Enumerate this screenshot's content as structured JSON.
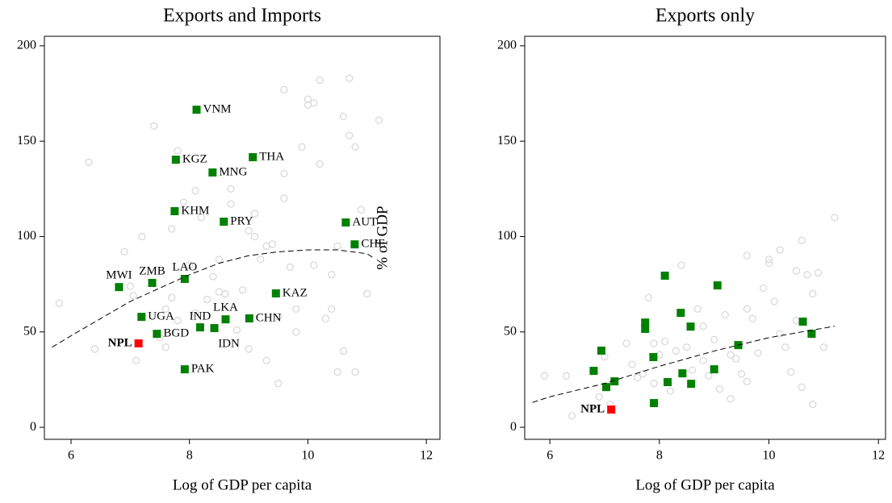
{
  "chart_data": [
    {
      "type": "scatter",
      "title": "Exports and Imports",
      "x_label": "Log of GDP per capita",
      "y_label": "% of GDP",
      "xlim": [
        5.55,
        12.23
      ],
      "ylim": [
        -6.3,
        205
      ],
      "xticks": [
        6,
        8,
        10,
        12
      ],
      "yticks": [
        0,
        50,
        100,
        150,
        200
      ],
      "series": [
        {
          "marker": "hollow-circle",
          "color": "#d9d9d9",
          "x": [
            6.3,
            5.8,
            6.4,
            6.9,
            7.0,
            7.05,
            7.2,
            7.4,
            7.6,
            7.7,
            7.8,
            7.7,
            7.8,
            7.9,
            8.1,
            8.1,
            8.2,
            8.3,
            8.4,
            8.5,
            8.6,
            8.7,
            8.7,
            8.8,
            8.9,
            9.0,
            9.1,
            9.1,
            9.2,
            9.3,
            9.4,
            9.5,
            9.5,
            9.6,
            9.6,
            9.6,
            9.7,
            9.8,
            9.9,
            10.0,
            10.0,
            10.1,
            10.2,
            10.2,
            10.3,
            10.4,
            10.5,
            10.5,
            10.6,
            10.7,
            10.7,
            10.8,
            10.9,
            11.0,
            11.2,
            10.6,
            10.8,
            9.0,
            9.3,
            9.8,
            10.1,
            7.1,
            7.5,
            7.6,
            8.0,
            8.5,
            10.4
          ],
          "values": [
            139,
            65,
            41,
            92,
            74,
            69,
            100,
            158,
            62,
            68,
            145,
            104,
            56,
            118,
            124,
            60,
            110,
            67,
            79,
            71,
            70,
            125,
            117,
            51,
            72,
            103,
            112,
            100,
            88,
            35,
            96,
            58,
            23,
            177,
            120,
            133,
            84,
            62,
            147,
            172,
            169,
            170,
            182,
            138,
            57,
            80,
            95,
            29,
            163,
            183,
            153,
            147,
            114,
            70,
            161,
            40,
            29,
            41,
            95,
            50,
            85,
            35,
            47,
            42,
            85,
            88,
            62
          ]
        },
        {
          "marker": "square",
          "color": "#008000",
          "x": [
            8.12,
            7.77,
            9.07,
            8.39,
            7.75,
            8.58,
            10.64,
            10.79,
            6.81,
            7.37,
            7.92,
            9.46,
            7.19,
            8.18,
            8.61,
            9.01,
            8.42,
            7.45,
            7.92
          ],
          "values": [
            166.5,
            140.3,
            141.6,
            133.6,
            113.3,
            107.8,
            107.4,
            95.9,
            73.5,
            75.7,
            77.8,
            70.2,
            57.9,
            52.4,
            56.6,
            57.1,
            52.0,
            49.0,
            30.4
          ],
          "labels": [
            "VNM",
            "KGZ",
            "THA",
            "MNG",
            "KHM",
            "PRY",
            "AUT",
            "CHE",
            "MWI",
            "ZMB",
            "LAO",
            "KAZ",
            "UGA",
            "IND",
            "LKA",
            "CHN",
            "IDN",
            "BGD",
            "PAK"
          ]
        },
        {
          "marker": "square",
          "color": "#ff0000",
          "x": [
            7.14
          ],
          "values": [
            44.0
          ],
          "labels": [
            "NPL"
          ]
        },
        {
          "marker": "line",
          "color": "#000000",
          "style": "dashed",
          "x": [
            5.68,
            6.0,
            6.5,
            7.0,
            7.5,
            8.0,
            8.5,
            9.0,
            9.5,
            10.0,
            10.5,
            11.0,
            11.1
          ],
          "values": [
            42,
            48,
            57,
            66,
            73,
            80,
            86,
            90,
            92,
            93,
            93,
            91,
            89
          ]
        }
      ]
    },
    {
      "type": "scatter",
      "title": "Exports only",
      "x_label": "Log of GDP per capita",
      "xlim": [
        5.54,
        12.13
      ],
      "ylim": [
        -6.3,
        205
      ],
      "xticks": [
        6,
        8,
        10,
        12
      ],
      "yticks": [
        0,
        50,
        100,
        150,
        200
      ],
      "series": [
        {
          "marker": "hollow-circle",
          "color": "#d9d9d9",
          "x": [
            5.9,
            6.3,
            6.4,
            6.9,
            7.0,
            7.1,
            7.4,
            7.5,
            7.6,
            7.7,
            7.8,
            7.9,
            8.0,
            8.1,
            8.2,
            8.3,
            8.4,
            8.5,
            8.6,
            8.7,
            8.8,
            8.9,
            9.0,
            9.1,
            9.2,
            9.3,
            9.3,
            9.4,
            9.5,
            9.6,
            9.6,
            9.7,
            9.8,
            9.9,
            10.0,
            10.0,
            10.1,
            10.2,
            10.2,
            10.3,
            10.4,
            10.5,
            10.6,
            10.6,
            10.7,
            10.8,
            10.8,
            10.9,
            11.0,
            11.2,
            10.5,
            9.6,
            8.8,
            7.9
          ],
          "values": [
            27,
            27,
            6,
            16,
            37,
            12,
            44,
            33,
            26,
            28,
            68,
            44,
            38,
            45,
            19,
            40,
            85,
            42,
            30,
            62,
            53,
            27,
            46,
            20,
            59,
            15,
            38,
            36,
            28,
            90,
            62,
            57,
            39,
            73,
            88,
            86,
            66,
            93,
            49,
            42,
            29,
            82,
            98,
            21,
            80,
            70,
            12,
            81,
            42,
            110,
            56,
            24,
            35,
            23
          ]
        },
        {
          "marker": "square",
          "color": "#008000",
          "x": [
            8.1,
            9.06,
            6.8,
            7.18,
            6.94,
            7.03,
            7.74,
            7.74,
            7.89,
            7.9,
            8.15,
            8.39,
            8.42,
            8.57,
            8.58,
            9.0,
            9.44,
            10.62,
            10.78
          ],
          "values": [
            79.5,
            74.4,
            29.6,
            24.1,
            40.2,
            21.1,
            54.9,
            51.6,
            36.8,
            12.7,
            23.7,
            60.0,
            28.3,
            52.8,
            22.8,
            30.4,
            43.1,
            55.4,
            49.0
          ]
        },
        {
          "marker": "square",
          "color": "#ff0000",
          "x": [
            7.12
          ],
          "values": [
            9.3
          ],
          "labels": [
            "NPL"
          ]
        },
        {
          "marker": "line",
          "color": "#000000",
          "style": "dashed",
          "x": [
            5.68,
            6.0,
            7.0,
            8.0,
            9.0,
            10.0,
            11.2
          ],
          "values": [
            13,
            16,
            23,
            32,
            40,
            47,
            53
          ]
        }
      ]
    }
  ]
}
